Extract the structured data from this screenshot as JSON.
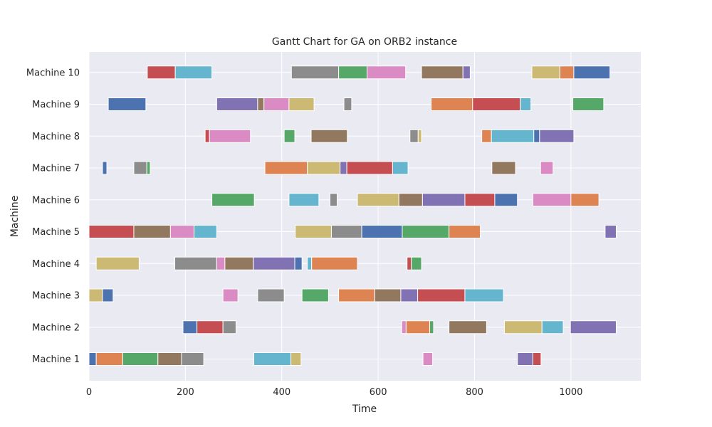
{
  "chart_data": {
    "type": "gantt",
    "title": "Gantt Chart for GA on ORB2 instance",
    "xlabel": "Time",
    "ylabel": "Machine",
    "xlim": [
      0,
      1145
    ],
    "xticks": [
      0,
      200,
      400,
      600,
      800,
      1000
    ],
    "grid": true,
    "legend": "none",
    "colors": {
      "background": "#eaeaf2",
      "grid": "#ffffff",
      "job_colors": [
        "#4c72b0",
        "#dd8452",
        "#55a868",
        "#c44e52",
        "#8172b3",
        "#937860",
        "#da8bc3",
        "#8c8c8c",
        "#ccb974",
        "#64b5cd"
      ]
    },
    "machines": [
      {
        "label": "Machine 1",
        "tasks": [
          [
            0,
            15,
            0
          ],
          [
            15,
            70,
            1
          ],
          [
            70,
            143,
            2
          ],
          [
            143,
            192,
            5
          ],
          [
            192,
            238,
            7
          ],
          [
            342,
            419,
            9
          ],
          [
            419,
            440,
            8
          ],
          [
            693,
            713,
            6
          ],
          [
            889,
            921,
            4
          ],
          [
            921,
            938,
            3
          ]
        ]
      },
      {
        "label": "Machine 2",
        "tasks": [
          [
            195,
            224,
            0
          ],
          [
            224,
            278,
            3
          ],
          [
            278,
            305,
            7
          ],
          [
            649,
            658,
            6
          ],
          [
            658,
            707,
            1
          ],
          [
            707,
            715,
            2
          ],
          [
            747,
            825,
            5
          ],
          [
            862,
            940,
            8
          ],
          [
            940,
            984,
            9
          ],
          [
            999,
            1094,
            4
          ]
        ]
      },
      {
        "label": "Machine 3",
        "tasks": [
          [
            0,
            28,
            8
          ],
          [
            28,
            50,
            0
          ],
          [
            278,
            309,
            6
          ],
          [
            350,
            405,
            7
          ],
          [
            442,
            497,
            2
          ],
          [
            518,
            593,
            1
          ],
          [
            593,
            647,
            5
          ],
          [
            647,
            682,
            4
          ],
          [
            682,
            780,
            3
          ],
          [
            780,
            860,
            9
          ]
        ]
      },
      {
        "label": "Machine 4",
        "tasks": [
          [
            15,
            104,
            8
          ],
          [
            178,
            265,
            7
          ],
          [
            265,
            282,
            6
          ],
          [
            282,
            341,
            5
          ],
          [
            341,
            427,
            4
          ],
          [
            427,
            442,
            0
          ],
          [
            453,
            462,
            9
          ],
          [
            462,
            557,
            1
          ],
          [
            660,
            669,
            3
          ],
          [
            669,
            690,
            2
          ]
        ]
      },
      {
        "label": "Machine 5",
        "tasks": [
          [
            0,
            93,
            3
          ],
          [
            93,
            169,
            5
          ],
          [
            169,
            218,
            6
          ],
          [
            218,
            265,
            9
          ],
          [
            428,
            503,
            8
          ],
          [
            503,
            566,
            7
          ],
          [
            566,
            650,
            0
          ],
          [
            650,
            747,
            2
          ],
          [
            747,
            812,
            1
          ],
          [
            1071,
            1094,
            4
          ]
        ]
      },
      {
        "label": "Machine 6",
        "tasks": [
          [
            255,
            343,
            2
          ],
          [
            415,
            477,
            9
          ],
          [
            500,
            515,
            7
          ],
          [
            557,
            643,
            8
          ],
          [
            643,
            692,
            5
          ],
          [
            692,
            780,
            4
          ],
          [
            780,
            842,
            3
          ],
          [
            842,
            889,
            0
          ],
          [
            921,
            1000,
            6
          ],
          [
            1000,
            1058,
            1
          ]
        ]
      },
      {
        "label": "Machine 7",
        "tasks": [
          [
            28,
            37,
            0
          ],
          [
            93,
            120,
            7
          ],
          [
            120,
            127,
            2
          ],
          [
            365,
            453,
            1
          ],
          [
            453,
            521,
            8
          ],
          [
            521,
            535,
            4
          ],
          [
            535,
            630,
            3
          ],
          [
            630,
            662,
            9
          ],
          [
            836,
            885,
            5
          ],
          [
            937,
            963,
            6
          ]
        ]
      },
      {
        "label": "Machine 8",
        "tasks": [
          [
            241,
            250,
            3
          ],
          [
            250,
            335,
            6
          ],
          [
            405,
            427,
            2
          ],
          [
            461,
            536,
            5
          ],
          [
            666,
            683,
            7
          ],
          [
            683,
            690,
            8
          ],
          [
            815,
            835,
            1
          ],
          [
            835,
            923,
            9
          ],
          [
            923,
            935,
            0
          ],
          [
            935,
            1006,
            4
          ]
        ]
      },
      {
        "label": "Machine 9",
        "tasks": [
          [
            40,
            118,
            0
          ],
          [
            265,
            350,
            4
          ],
          [
            350,
            363,
            5
          ],
          [
            363,
            415,
            6
          ],
          [
            415,
            467,
            8
          ],
          [
            529,
            545,
            7
          ],
          [
            710,
            796,
            1
          ],
          [
            796,
            895,
            3
          ],
          [
            895,
            917,
            9
          ],
          [
            1004,
            1068,
            2
          ]
        ]
      },
      {
        "label": "Machine 10",
        "tasks": [
          [
            121,
            179,
            3
          ],
          [
            179,
            255,
            9
          ],
          [
            420,
            518,
            7
          ],
          [
            518,
            577,
            2
          ],
          [
            577,
            657,
            6
          ],
          [
            690,
            776,
            5
          ],
          [
            776,
            791,
            4
          ],
          [
            919,
            977,
            8
          ],
          [
            977,
            1006,
            1
          ],
          [
            1006,
            1081,
            0
          ]
        ]
      }
    ]
  }
}
